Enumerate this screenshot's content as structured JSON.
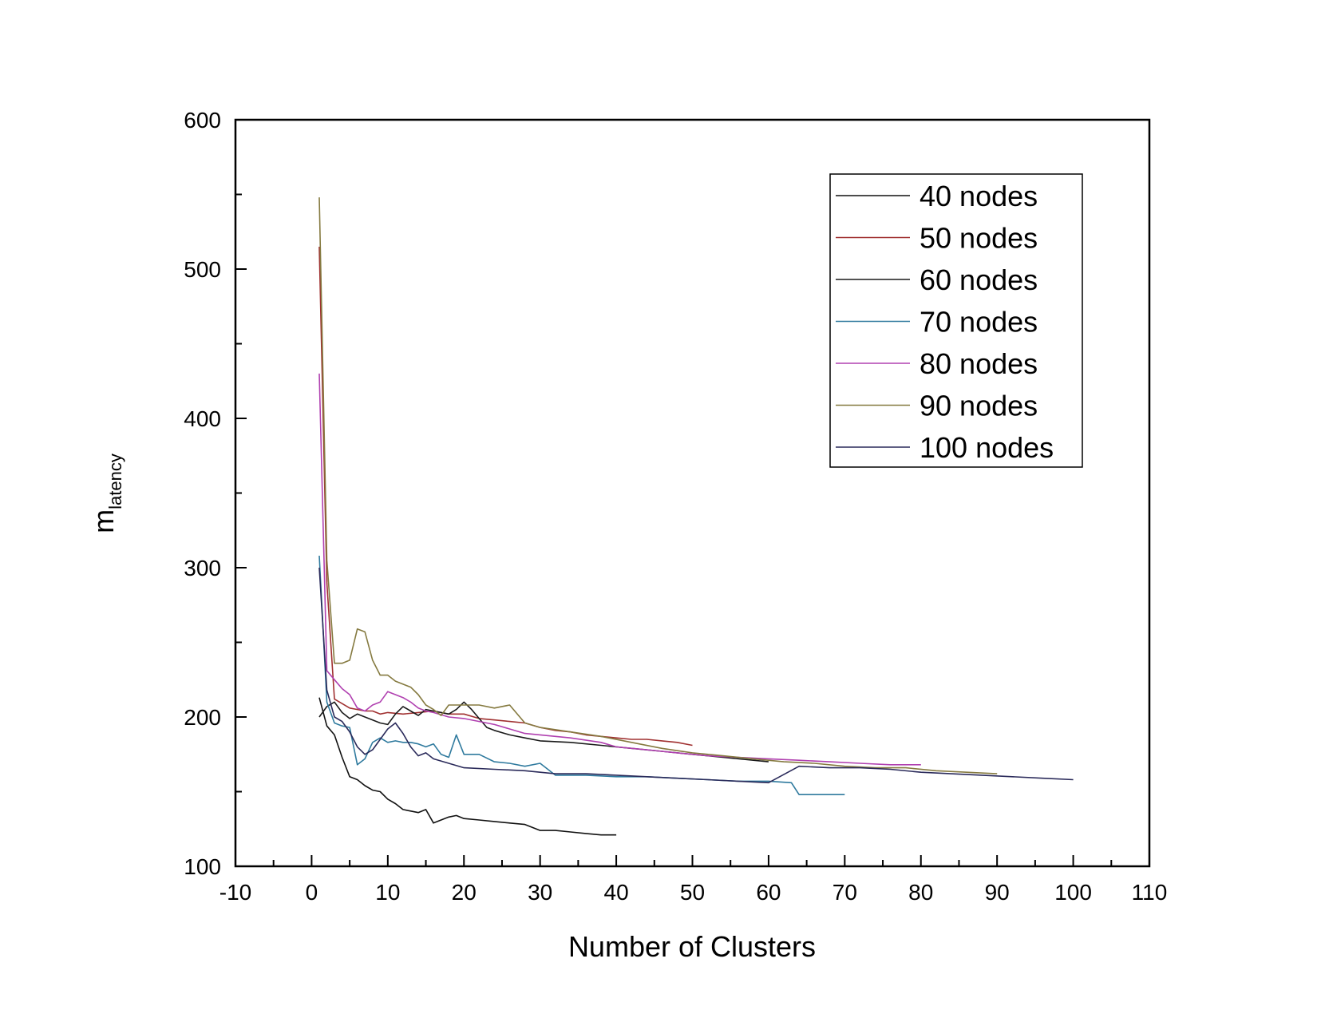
{
  "chart_data": {
    "type": "line",
    "xlabel": "Number of Clusters",
    "ylabel": {
      "main": "m",
      "subscript": "latency"
    },
    "xlim": [
      -10,
      110
    ],
    "ylim": [
      100,
      600
    ],
    "xticks": [
      -10,
      0,
      10,
      20,
      30,
      40,
      50,
      60,
      70,
      80,
      90,
      100,
      110
    ],
    "yticks": [
      100,
      200,
      300,
      400,
      500,
      600
    ],
    "x_minor_step": 5,
    "y_minor_step": 50,
    "legend_position": "top-right",
    "grid": false,
    "series": [
      {
        "name": "40 nodes",
        "color": "#111111",
        "points": [
          [
            1,
            213
          ],
          [
            2,
            194
          ],
          [
            3,
            188
          ],
          [
            4,
            173
          ],
          [
            5,
            160
          ],
          [
            6,
            158
          ],
          [
            7,
            154
          ],
          [
            8,
            151
          ],
          [
            9,
            150
          ],
          [
            10,
            145
          ],
          [
            11,
            142
          ],
          [
            12,
            138
          ],
          [
            13,
            137
          ],
          [
            14,
            136
          ],
          [
            15,
            138
          ],
          [
            16,
            129
          ],
          [
            17,
            131
          ],
          [
            18,
            133
          ],
          [
            19,
            134
          ],
          [
            20,
            132
          ],
          [
            22,
            131
          ],
          [
            24,
            130
          ],
          [
            26,
            129
          ],
          [
            28,
            128
          ],
          [
            30,
            124
          ],
          [
            32,
            124
          ],
          [
            34,
            123
          ],
          [
            36,
            122
          ],
          [
            38,
            121
          ],
          [
            40,
            121
          ]
        ]
      },
      {
        "name": "50 nodes",
        "color": "#a03030",
        "points": [
          [
            1,
            515
          ],
          [
            2,
            290
          ],
          [
            3,
            212
          ],
          [
            4,
            209
          ],
          [
            5,
            206
          ],
          [
            6,
            205
          ],
          [
            7,
            204
          ],
          [
            8,
            204
          ],
          [
            9,
            202
          ],
          [
            10,
            203
          ],
          [
            12,
            202
          ],
          [
            14,
            203
          ],
          [
            16,
            204
          ],
          [
            18,
            202
          ],
          [
            20,
            202
          ],
          [
            22,
            199
          ],
          [
            24,
            198
          ],
          [
            26,
            197
          ],
          [
            28,
            196
          ],
          [
            30,
            193
          ],
          [
            32,
            191
          ],
          [
            34,
            190
          ],
          [
            36,
            188
          ],
          [
            38,
            187
          ],
          [
            40,
            186
          ],
          [
            42,
            185
          ],
          [
            44,
            185
          ],
          [
            46,
            184
          ],
          [
            48,
            183
          ],
          [
            50,
            181
          ]
        ]
      },
      {
        "name": "60 nodes",
        "color": "#1a1a1a",
        "points": [
          [
            1,
            200
          ],
          [
            2,
            207
          ],
          [
            3,
            210
          ],
          [
            4,
            203
          ],
          [
            5,
            199
          ],
          [
            6,
            202
          ],
          [
            7,
            200
          ],
          [
            8,
            198
          ],
          [
            9,
            196
          ],
          [
            10,
            195
          ],
          [
            11,
            202
          ],
          [
            12,
            207
          ],
          [
            13,
            204
          ],
          [
            14,
            201
          ],
          [
            15,
            205
          ],
          [
            16,
            204
          ],
          [
            17,
            203
          ],
          [
            18,
            202
          ],
          [
            19,
            205
          ],
          [
            20,
            210
          ],
          [
            21,
            205
          ],
          [
            22,
            199
          ],
          [
            23,
            193
          ],
          [
            24,
            191
          ],
          [
            26,
            188
          ],
          [
            28,
            186
          ],
          [
            30,
            184
          ],
          [
            34,
            183
          ],
          [
            38,
            181
          ],
          [
            42,
            179
          ],
          [
            46,
            177
          ],
          [
            50,
            175
          ],
          [
            54,
            173
          ],
          [
            58,
            171
          ],
          [
            60,
            170
          ]
        ]
      },
      {
        "name": "70 nodes",
        "color": "#2f7a9e",
        "points": [
          [
            1,
            308
          ],
          [
            2,
            210
          ],
          [
            3,
            196
          ],
          [
            4,
            194
          ],
          [
            5,
            193
          ],
          [
            6,
            168
          ],
          [
            7,
            172
          ],
          [
            8,
            183
          ],
          [
            9,
            186
          ],
          [
            10,
            183
          ],
          [
            11,
            184
          ],
          [
            12,
            183
          ],
          [
            13,
            183
          ],
          [
            14,
            182
          ],
          [
            15,
            180
          ],
          [
            16,
            182
          ],
          [
            17,
            175
          ],
          [
            18,
            173
          ],
          [
            19,
            188
          ],
          [
            20,
            175
          ],
          [
            22,
            175
          ],
          [
            24,
            170
          ],
          [
            26,
            169
          ],
          [
            28,
            167
          ],
          [
            30,
            169
          ],
          [
            32,
            161
          ],
          [
            36,
            161
          ],
          [
            40,
            160
          ],
          [
            44,
            160
          ],
          [
            48,
            159
          ],
          [
            52,
            158
          ],
          [
            56,
            157
          ],
          [
            60,
            157
          ],
          [
            63,
            156
          ],
          [
            64,
            148
          ],
          [
            66,
            148
          ],
          [
            70,
            148
          ]
        ]
      },
      {
        "name": "80 nodes",
        "color": "#b040b0",
        "points": [
          [
            1,
            430
          ],
          [
            2,
            231
          ],
          [
            3,
            225
          ],
          [
            4,
            219
          ],
          [
            5,
            215
          ],
          [
            6,
            206
          ],
          [
            7,
            204
          ],
          [
            8,
            208
          ],
          [
            9,
            210
          ],
          [
            10,
            217
          ],
          [
            11,
            215
          ],
          [
            12,
            213
          ],
          [
            13,
            210
          ],
          [
            14,
            206
          ],
          [
            15,
            204
          ],
          [
            16,
            203
          ],
          [
            18,
            200
          ],
          [
            20,
            199
          ],
          [
            22,
            197
          ],
          [
            24,
            195
          ],
          [
            26,
            192
          ],
          [
            28,
            189
          ],
          [
            30,
            188
          ],
          [
            34,
            186
          ],
          [
            38,
            183
          ],
          [
            40,
            180
          ],
          [
            44,
            178
          ],
          [
            48,
            176
          ],
          [
            52,
            174
          ],
          [
            56,
            173
          ],
          [
            60,
            172
          ],
          [
            64,
            171
          ],
          [
            68,
            170
          ],
          [
            72,
            169
          ],
          [
            76,
            168
          ],
          [
            80,
            168
          ]
        ]
      },
      {
        "name": "90 nodes",
        "color": "#857a40",
        "points": [
          [
            1,
            548
          ],
          [
            2,
            305
          ],
          [
            3,
            236
          ],
          [
            4,
            236
          ],
          [
            5,
            238
          ],
          [
            6,
            259
          ],
          [
            7,
            257
          ],
          [
            8,
            238
          ],
          [
            9,
            228
          ],
          [
            10,
            228
          ],
          [
            11,
            224
          ],
          [
            12,
            222
          ],
          [
            13,
            220
          ],
          [
            14,
            215
          ],
          [
            15,
            208
          ],
          [
            16,
            205
          ],
          [
            17,
            201
          ],
          [
            18,
            208
          ],
          [
            20,
            208
          ],
          [
            22,
            208
          ],
          [
            24,
            206
          ],
          [
            26,
            208
          ],
          [
            28,
            196
          ],
          [
            30,
            193
          ],
          [
            34,
            190
          ],
          [
            38,
            187
          ],
          [
            42,
            183
          ],
          [
            46,
            179
          ],
          [
            50,
            176
          ],
          [
            54,
            174
          ],
          [
            58,
            172
          ],
          [
            62,
            170
          ],
          [
            66,
            169
          ],
          [
            70,
            167
          ],
          [
            74,
            166
          ],
          [
            78,
            166
          ],
          [
            82,
            164
          ],
          [
            86,
            163
          ],
          [
            90,
            162
          ]
        ]
      },
      {
        "name": "100 nodes",
        "color": "#2a2a5a",
        "points": [
          [
            1,
            300
          ],
          [
            2,
            218
          ],
          [
            3,
            200
          ],
          [
            4,
            197
          ],
          [
            5,
            190
          ],
          [
            6,
            180
          ],
          [
            7,
            175
          ],
          [
            8,
            178
          ],
          [
            9,
            185
          ],
          [
            10,
            192
          ],
          [
            11,
            196
          ],
          [
            12,
            189
          ],
          [
            13,
            180
          ],
          [
            14,
            174
          ],
          [
            15,
            176
          ],
          [
            16,
            172
          ],
          [
            18,
            169
          ],
          [
            20,
            166
          ],
          [
            24,
            165
          ],
          [
            28,
            164
          ],
          [
            32,
            162
          ],
          [
            36,
            162
          ],
          [
            40,
            161
          ],
          [
            44,
            160
          ],
          [
            48,
            159
          ],
          [
            52,
            158
          ],
          [
            56,
            157
          ],
          [
            60,
            156
          ],
          [
            64,
            167
          ],
          [
            68,
            166
          ],
          [
            72,
            166
          ],
          [
            76,
            165
          ],
          [
            80,
            163
          ],
          [
            84,
            162
          ],
          [
            88,
            161
          ],
          [
            92,
            160
          ],
          [
            96,
            159
          ],
          [
            100,
            158
          ]
        ]
      }
    ]
  }
}
